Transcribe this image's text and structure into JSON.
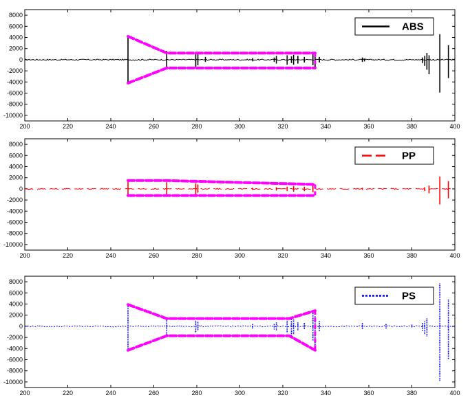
{
  "chart_data": [
    {
      "type": "line",
      "legend": "ABS",
      "legend_placement": "top-right",
      "color": "#000000",
      "line_style": "solid",
      "xlim": [
        200,
        400
      ],
      "ylim": [
        -11000,
        9000
      ],
      "xticks": [
        200,
        220,
        240,
        260,
        280,
        300,
        320,
        340,
        360,
        380,
        400
      ],
      "yticks": [
        8000,
        6000,
        4000,
        2000,
        0,
        -2000,
        -4000,
        -6000,
        -8000,
        -10000
      ],
      "grid": false,
      "spikes": [
        {
          "x": 248,
          "max": 4200,
          "min": -4300
        },
        {
          "x": 266,
          "max": 1600,
          "min": -1500
        },
        {
          "x": 279.5,
          "max": 1200,
          "min": -1300
        },
        {
          "x": 280.5,
          "max": 1000,
          "min": -1000
        },
        {
          "x": 284,
          "max": 500,
          "min": -400
        },
        {
          "x": 306,
          "max": 300,
          "min": -300
        },
        {
          "x": 316,
          "max": 400,
          "min": -400
        },
        {
          "x": 317,
          "max": 700,
          "min": -700
        },
        {
          "x": 322,
          "max": 800,
          "min": -900
        },
        {
          "x": 324,
          "max": 600,
          "min": -600
        },
        {
          "x": 325,
          "max": 900,
          "min": -900
        },
        {
          "x": 327,
          "max": 700,
          "min": -700
        },
        {
          "x": 330,
          "max": 500,
          "min": -500
        },
        {
          "x": 334,
          "max": 1200,
          "min": -1000
        },
        {
          "x": 335,
          "max": 1000,
          "min": -1400
        },
        {
          "x": 337,
          "max": 500,
          "min": -500
        },
        {
          "x": 357,
          "max": 400,
          "min": -400
        },
        {
          "x": 358,
          "max": 200,
          "min": -300
        },
        {
          "x": 385,
          "max": 400,
          "min": -600
        },
        {
          "x": 386,
          "max": 700,
          "min": -1100
        },
        {
          "x": 387,
          "max": 1200,
          "min": -1800
        },
        {
          "x": 388,
          "max": 800,
          "min": -2600
        },
        {
          "x": 393,
          "max": 4600,
          "min": -5900
        },
        {
          "x": 397,
          "max": 2600,
          "min": -3300
        }
      ],
      "annotation_outline": {
        "color": "#ff00ff",
        "upper": [
          [
            248,
            4200
          ],
          [
            266,
            1200
          ],
          [
            335,
            1200
          ]
        ],
        "lower": [
          [
            248,
            -4200
          ],
          [
            266,
            -1500
          ],
          [
            335,
            -1500
          ]
        ]
      }
    },
    {
      "type": "line",
      "legend": "PP",
      "legend_placement": "top-right",
      "color": "#ff0000",
      "line_style": "dashed",
      "xlim": [
        200,
        400
      ],
      "ylim": [
        -11000,
        9000
      ],
      "xticks": [
        200,
        220,
        240,
        260,
        280,
        300,
        320,
        340,
        360,
        380,
        400
      ],
      "yticks": [
        8000,
        6000,
        4000,
        2000,
        0,
        -2000,
        -4000,
        -6000,
        -8000,
        -10000
      ],
      "grid": false,
      "spikes": [
        {
          "x": 248,
          "max": 1400,
          "min": -1200
        },
        {
          "x": 266,
          "max": 1200,
          "min": -1000
        },
        {
          "x": 279.5,
          "max": 1000,
          "min": -1000
        },
        {
          "x": 280.5,
          "max": 800,
          "min": -700
        },
        {
          "x": 306,
          "max": 200,
          "min": -200
        },
        {
          "x": 317,
          "max": 300,
          "min": -300
        },
        {
          "x": 322,
          "max": 400,
          "min": -400
        },
        {
          "x": 325,
          "max": 500,
          "min": -500
        },
        {
          "x": 330,
          "max": 400,
          "min": -400
        },
        {
          "x": 334,
          "max": 600,
          "min": -600
        },
        {
          "x": 357,
          "max": 200,
          "min": -200
        },
        {
          "x": 386,
          "max": 300,
          "min": -400
        },
        {
          "x": 388,
          "max": 600,
          "min": -800
        },
        {
          "x": 393,
          "max": 2200,
          "min": -2800
        },
        {
          "x": 397,
          "max": 1400,
          "min": -1700
        }
      ],
      "annotation_outline": {
        "color": "#ff00ff",
        "upper": [
          [
            248,
            1500
          ],
          [
            266,
            1500
          ],
          [
            335,
            800
          ]
        ],
        "lower": [
          [
            248,
            -1200
          ],
          [
            266,
            -1200
          ],
          [
            335,
            -1200
          ]
        ]
      }
    },
    {
      "type": "line",
      "legend": "PS",
      "legend_placement": "top-right",
      "color": "#0000ff",
      "line_style": "dotted",
      "xlim": [
        200,
        400
      ],
      "ylim": [
        -11000,
        9000
      ],
      "xticks": [
        200,
        220,
        240,
        260,
        280,
        300,
        320,
        340,
        360,
        380,
        400
      ],
      "yticks": [
        8000,
        6000,
        4000,
        2000,
        0,
        -2000,
        -4000,
        -6000,
        -8000,
        -10000
      ],
      "grid": false,
      "spikes": [
        {
          "x": 248,
          "max": 3900,
          "min": -4100
        },
        {
          "x": 266,
          "max": 1500,
          "min": -1700
        },
        {
          "x": 279.5,
          "max": 1000,
          "min": -1200
        },
        {
          "x": 280.5,
          "max": 800,
          "min": -800
        },
        {
          "x": 306,
          "max": 400,
          "min": -400
        },
        {
          "x": 316,
          "max": 400,
          "min": -600
        },
        {
          "x": 317,
          "max": 700,
          "min": -800
        },
        {
          "x": 322,
          "max": 1000,
          "min": -1200
        },
        {
          "x": 324,
          "max": 1600,
          "min": -1800
        },
        {
          "x": 325,
          "max": 1200,
          "min": -1400
        },
        {
          "x": 327,
          "max": 700,
          "min": -700
        },
        {
          "x": 330,
          "max": 600,
          "min": -600
        },
        {
          "x": 334,
          "max": 2400,
          "min": -2600
        },
        {
          "x": 335,
          "max": 1800,
          "min": -4200
        },
        {
          "x": 337,
          "max": 900,
          "min": -900
        },
        {
          "x": 357,
          "max": 600,
          "min": -600
        },
        {
          "x": 368,
          "max": 400,
          "min": -400
        },
        {
          "x": 380,
          "max": 300,
          "min": -300
        },
        {
          "x": 385,
          "max": 600,
          "min": -800
        },
        {
          "x": 386,
          "max": 900,
          "min": -1400
        },
        {
          "x": 387,
          "max": 1400,
          "min": -1800
        },
        {
          "x": 393,
          "max": 7700,
          "min": -9900
        },
        {
          "x": 397,
          "max": 4800,
          "min": -6000
        }
      ],
      "annotation_outline": {
        "color": "#ff00ff",
        "upper": [
          [
            248,
            3900
          ],
          [
            266,
            1400
          ],
          [
            323,
            1400
          ],
          [
            335,
            2800
          ]
        ],
        "lower": [
          [
            248,
            -4300
          ],
          [
            266,
            -1700
          ],
          [
            323,
            -1700
          ],
          [
            335,
            -4300
          ]
        ]
      }
    }
  ]
}
